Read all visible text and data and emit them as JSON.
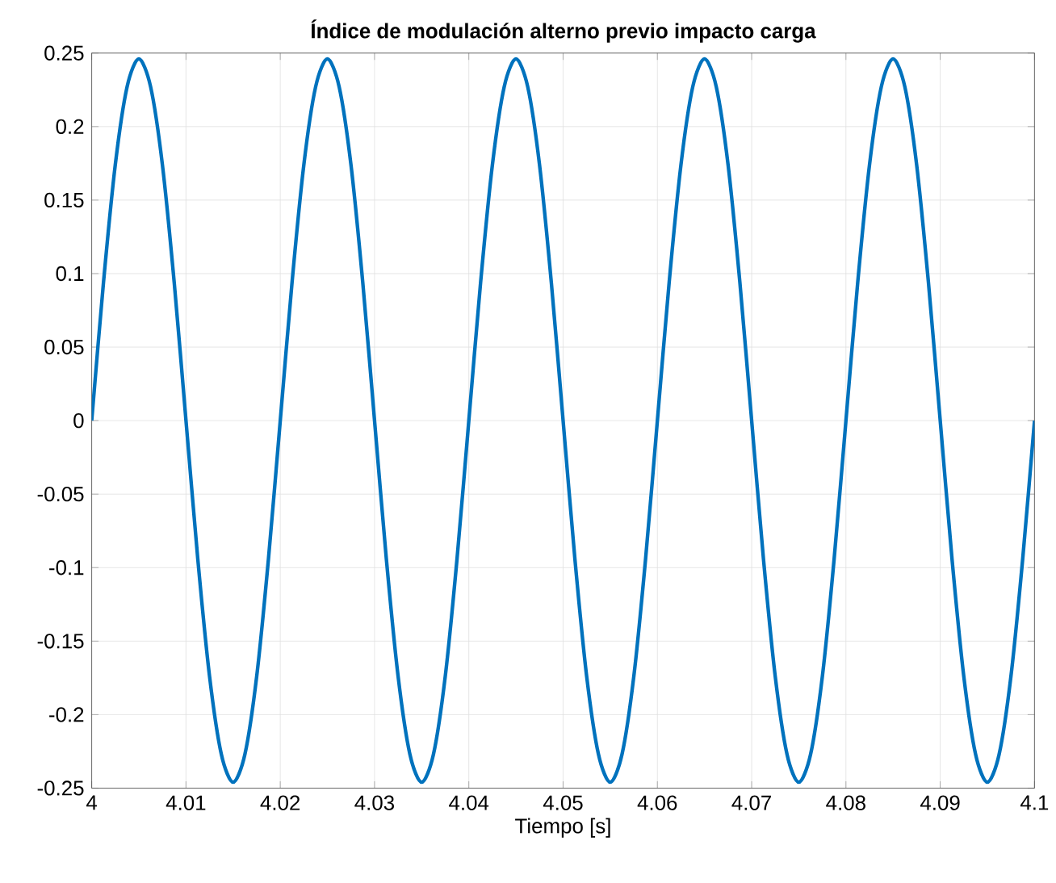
{
  "chart_data": {
    "type": "line",
    "title": "Índice de modulación alterno previo impacto carga",
    "xlabel": "Tiempo [s]",
    "x": [
      4,
      4.00125,
      4.0025,
      4.00375,
      4.005,
      4.00625,
      4.0075,
      4.00875,
      4.01,
      4.01125,
      4.0125,
      4.01375,
      4.015,
      4.01625,
      4.0175,
      4.01875,
      4.02,
      4.02125,
      4.0225,
      4.02375,
      4.025,
      4.02625,
      4.0275,
      4.02875,
      4.03,
      4.03125,
      4.0325,
      4.03375,
      4.035,
      4.03625,
      4.0375,
      4.03875,
      4.04,
      4.04125,
      4.0425,
      4.04375,
      4.045,
      4.04625,
      4.0475,
      4.04875,
      4.05,
      4.05125,
      4.0525,
      4.05375,
      4.055,
      4.05625,
      4.0575,
      4.05875,
      4.06,
      4.06125,
      4.0625,
      4.06375,
      4.065,
      4.06625,
      4.0675,
      4.06875,
      4.07,
      4.07125,
      4.0725,
      4.07375,
      4.075,
      4.07625,
      4.0775,
      4.07875,
      4.08,
      4.08125,
      4.0825,
      4.08375,
      4.085,
      4.08625,
      4.0875,
      4.08875,
      4.09,
      4.09125,
      4.0925,
      4.09375,
      4.095,
      4.09625,
      4.0975,
      4.09875,
      4.1
    ],
    "series": [
      {
        "color": "#0072bd",
        "values": [
          0,
          0.094,
          0.174,
          0.227,
          0.246,
          0.227,
          0.174,
          0.094,
          0,
          -0.094,
          -0.174,
          -0.227,
          -0.246,
          -0.227,
          -0.174,
          -0.094,
          0,
          0.094,
          0.174,
          0.227,
          0.246,
          0.227,
          0.174,
          0.094,
          0,
          -0.094,
          -0.174,
          -0.227,
          -0.246,
          -0.227,
          -0.174,
          -0.094,
          0,
          0.094,
          0.174,
          0.227,
          0.246,
          0.227,
          0.174,
          0.094,
          0,
          -0.094,
          -0.174,
          -0.227,
          -0.246,
          -0.227,
          -0.174,
          -0.094,
          0,
          0.094,
          0.174,
          0.227,
          0.246,
          0.227,
          0.174,
          0.094,
          0,
          -0.094,
          -0.174,
          -0.227,
          -0.246,
          -0.227,
          -0.174,
          -0.094,
          0,
          0.094,
          0.174,
          0.227,
          0.246,
          0.227,
          0.174,
          0.094,
          0,
          -0.094,
          -0.174,
          -0.227,
          -0.246,
          -0.227,
          -0.174,
          -0.094,
          0
        ]
      }
    ],
    "xlim": [
      4,
      4.1
    ],
    "ylim": [
      -0.25,
      0.25
    ],
    "xticks": [
      4,
      4.01,
      4.02,
      4.03,
      4.04,
      4.05,
      4.06,
      4.07,
      4.08,
      4.09,
      4.1
    ],
    "yticks": [
      -0.25,
      -0.2,
      -0.15,
      -0.1,
      -0.05,
      0,
      0.05,
      0.1,
      0.15,
      0.2,
      0.25
    ],
    "grid": true,
    "line_style": "solid",
    "marker": "none"
  }
}
